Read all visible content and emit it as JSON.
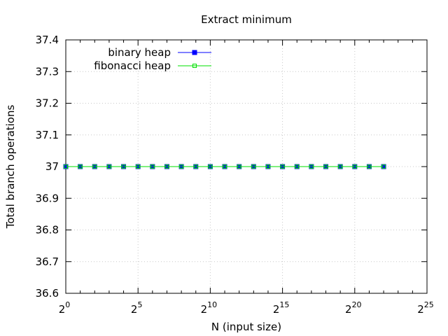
{
  "chart_data": {
    "type": "line",
    "title": "Extract minimum",
    "xlabel": "N (input size)",
    "ylabel": "Total branch operations",
    "x_scale": "log2",
    "x_base": "2",
    "x_exponents": [
      0,
      5,
      10,
      15,
      20,
      25
    ],
    "xlim": [
      0,
      25
    ],
    "ylim": [
      36.6,
      37.4
    ],
    "y_ticks": [
      "36.6",
      "36.7",
      "36.8",
      "36.9",
      "37",
      "37.1",
      "37.2",
      "37.3",
      "37.4"
    ],
    "grid": true,
    "legend_position": "top-left",
    "x": [
      1,
      2,
      4,
      8,
      16,
      32,
      64,
      128,
      256,
      512,
      1024,
      2048,
      4096,
      8192,
      16384,
      32768,
      65536,
      131072,
      262144,
      524288,
      1048576,
      2097152,
      4194304
    ],
    "series": [
      {
        "name": "binary heap",
        "color": "#0000ff",
        "marker": "filled-square",
        "values": [
          37,
          37,
          37,
          37,
          37,
          37,
          37,
          37,
          37,
          37,
          37,
          37,
          37,
          37,
          37,
          37,
          37,
          37,
          37,
          37,
          37,
          37,
          37
        ]
      },
      {
        "name": "fibonacci heap",
        "color": "#00e000",
        "marker": "open-square",
        "values": [
          37,
          37,
          37,
          37,
          37,
          37,
          37,
          37,
          37,
          37,
          37,
          37,
          37,
          37,
          37,
          37,
          37,
          37,
          37,
          37,
          37,
          37,
          37
        ]
      }
    ]
  }
}
